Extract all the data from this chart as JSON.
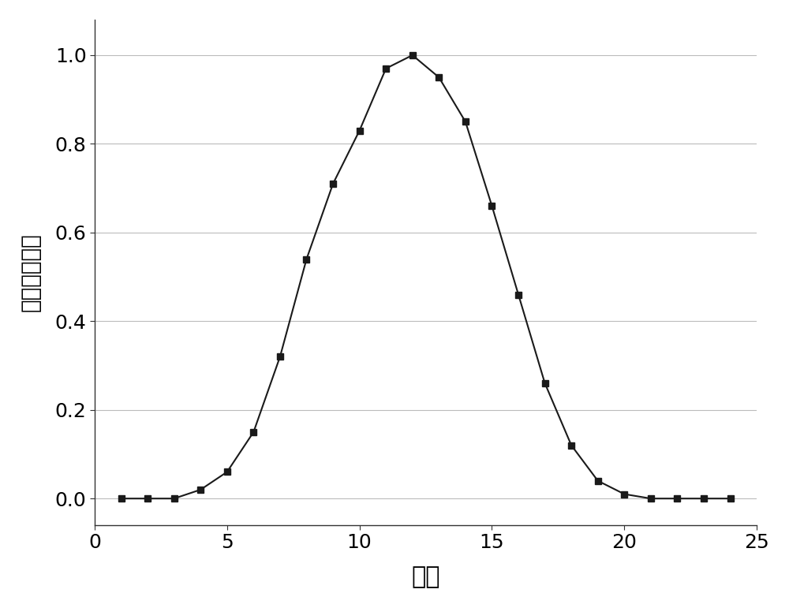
{
  "x": [
    1,
    2,
    3,
    4,
    5,
    6,
    7,
    8,
    9,
    10,
    11,
    12,
    13,
    14,
    15,
    16,
    17,
    18,
    19,
    20,
    21,
    22,
    23,
    24
  ],
  "y": [
    0.0,
    0.0,
    0.0,
    0.02,
    0.06,
    0.15,
    0.32,
    0.54,
    0.71,
    0.83,
    0.97,
    1.0,
    0.95,
    0.85,
    0.66,
    0.46,
    0.26,
    0.12,
    0.04,
    0.01,
    0.0,
    0.0,
    0.0,
    0.0
  ],
  "xlabel": "时段",
  "ylabel": "相对容量因数",
  "xlim": [
    0,
    25
  ],
  "ylim": [
    -0.06,
    1.08
  ],
  "xticks": [
    0,
    5,
    10,
    15,
    20,
    25
  ],
  "yticks": [
    0.0,
    0.2,
    0.4,
    0.6,
    0.8,
    1.0
  ],
  "ytick_labels": [
    "0.0",
    "0.2",
    "0.4",
    "0.6",
    "0.8",
    "1.0"
  ],
  "line_color": "#1a1a1a",
  "marker": "s",
  "marker_size": 6,
  "marker_color": "#1a1a1a",
  "line_width": 1.5,
  "background_color": "#ffffff",
  "grid_color": "#bbbbbb",
  "xlabel_fontsize": 22,
  "ylabel_fontsize": 20,
  "tick_fontsize": 18
}
